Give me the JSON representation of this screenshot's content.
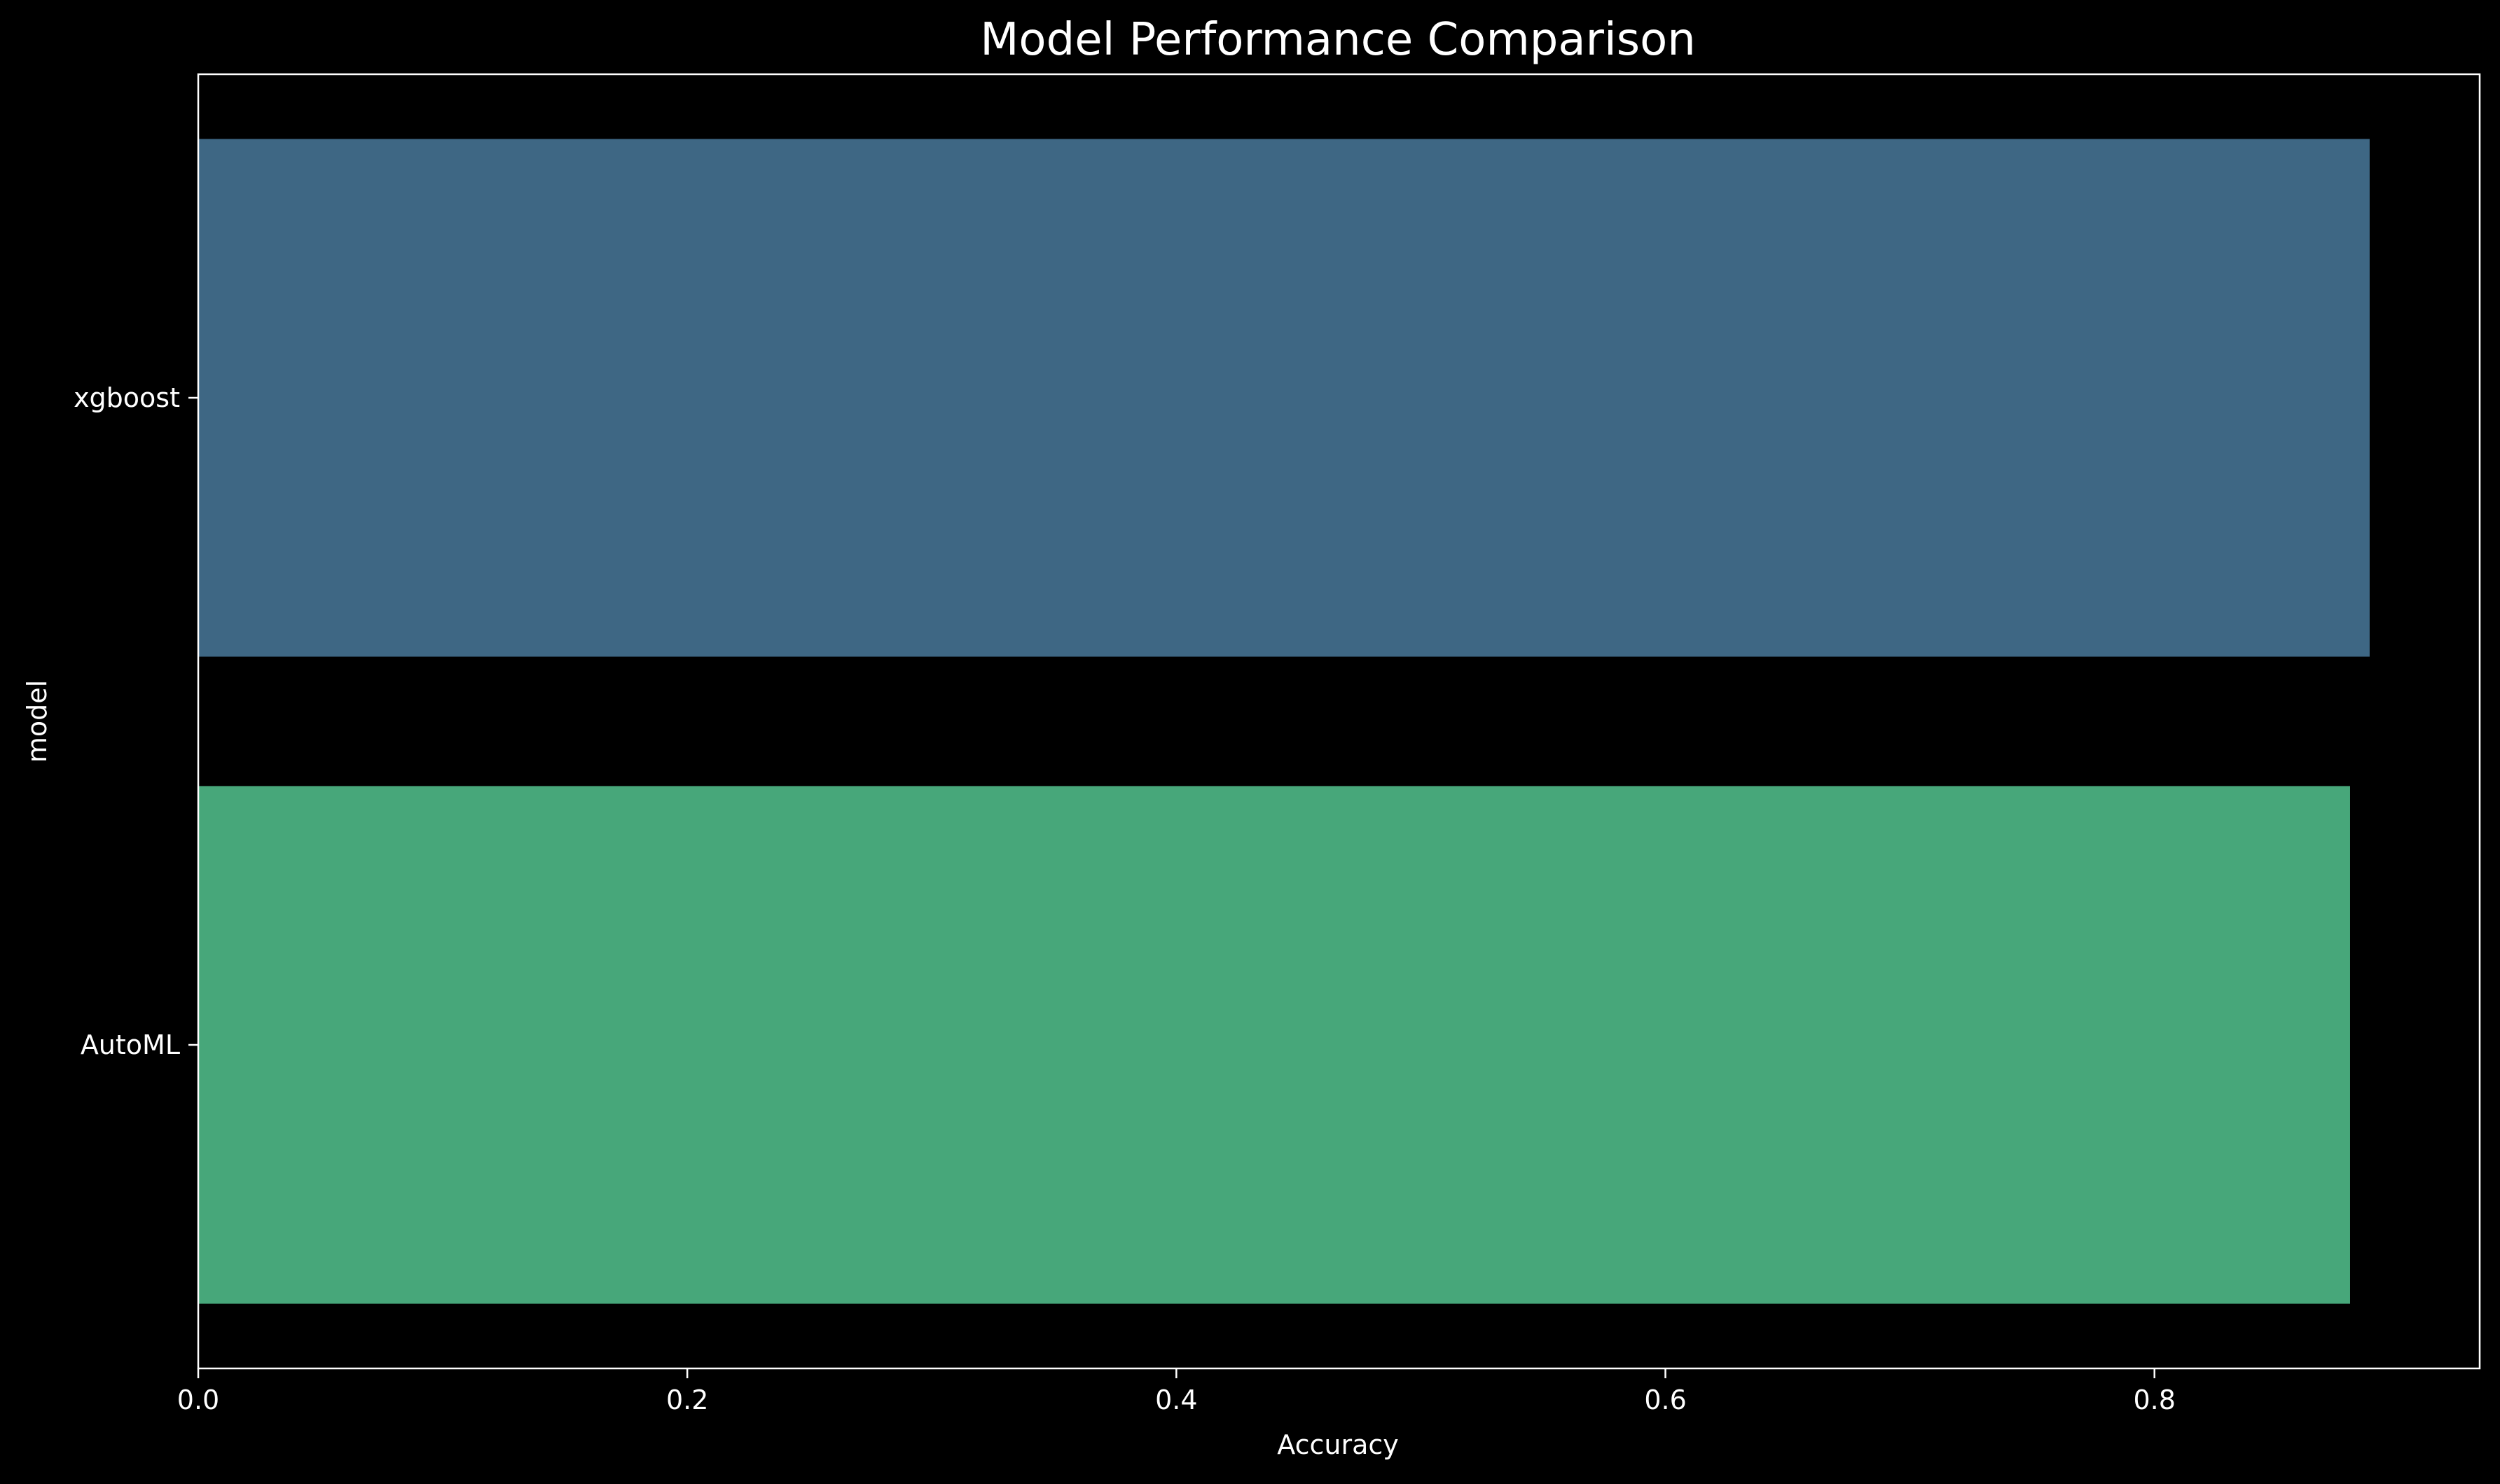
{
  "chart_data": {
    "type": "bar",
    "orientation": "horizontal",
    "title": "Model Performance Comparison",
    "xlabel": "Accuracy",
    "ylabel": "model",
    "categories": [
      "xgboost",
      "AutoML"
    ],
    "values": [
      0.888,
      0.88
    ],
    "xlim": [
      0.0,
      0.933
    ],
    "xticks": [
      {
        "value": 0.0,
        "label": "0.0"
      },
      {
        "value": 0.2,
        "label": "0.2"
      },
      {
        "value": 0.4,
        "label": "0.4"
      },
      {
        "value": 0.6,
        "label": "0.6"
      },
      {
        "value": 0.8,
        "label": "0.8"
      }
    ],
    "bar_colors": [
      "#3e6784",
      "#47a77a"
    ],
    "background": "#000000",
    "foreground": "#ffffff",
    "grid": false,
    "legend": "none"
  }
}
